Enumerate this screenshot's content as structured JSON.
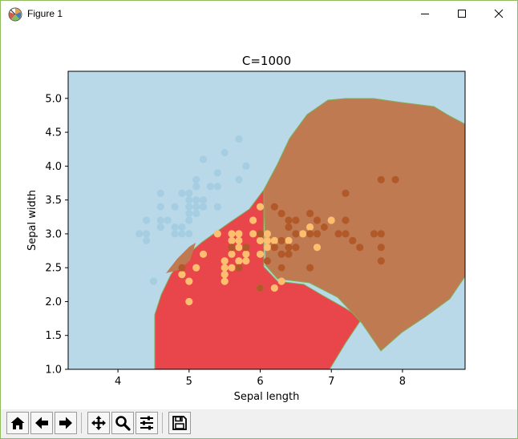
{
  "window": {
    "title": "Figure 1",
    "controls": [
      "minimize",
      "maximize",
      "close"
    ]
  },
  "chart_data": {
    "type": "scatter",
    "title": "C=1000",
    "xlabel": "Sepal length",
    "ylabel": "Sepal width",
    "xlim": [
      3.3,
      8.88
    ],
    "ylim": [
      1.0,
      5.4
    ],
    "xticks": [
      "4",
      "5",
      "6",
      "7",
      "8"
    ],
    "yticks": [
      "1.0",
      "1.5",
      "2.0",
      "2.5",
      "3.0",
      "3.5",
      "4.0",
      "4.5",
      "5.0"
    ],
    "grid": false,
    "legend": "none",
    "region_colors": {
      "background": "#b9d8e8",
      "red": "#e8464a",
      "brown": "#c07a52"
    },
    "series": [
      {
        "color": "#a6cee3",
        "points": [
          [
            4.3,
            3.0
          ],
          [
            4.4,
            2.9
          ],
          [
            4.4,
            3.0
          ],
          [
            4.4,
            3.2
          ],
          [
            4.5,
            2.3
          ],
          [
            4.6,
            3.1
          ],
          [
            4.6,
            3.2
          ],
          [
            4.6,
            3.4
          ],
          [
            4.6,
            3.6
          ],
          [
            4.7,
            3.2
          ],
          [
            4.8,
            3.0
          ],
          [
            4.8,
            3.1
          ],
          [
            4.8,
            3.4
          ],
          [
            4.9,
            3.0
          ],
          [
            4.9,
            3.1
          ],
          [
            4.9,
            3.6
          ],
          [
            5.0,
            3.0
          ],
          [
            5.0,
            3.2
          ],
          [
            5.0,
            3.3
          ],
          [
            5.0,
            3.4
          ],
          [
            5.0,
            3.5
          ],
          [
            5.0,
            3.6
          ],
          [
            5.1,
            3.3
          ],
          [
            5.1,
            3.4
          ],
          [
            5.1,
            3.5
          ],
          [
            5.1,
            3.7
          ],
          [
            5.1,
            3.8
          ],
          [
            5.2,
            3.4
          ],
          [
            5.2,
            3.5
          ],
          [
            5.2,
            4.1
          ],
          [
            5.3,
            3.7
          ],
          [
            5.4,
            3.4
          ],
          [
            5.4,
            3.7
          ],
          [
            5.4,
            3.9
          ],
          [
            5.5,
            4.2
          ],
          [
            5.7,
            3.8
          ],
          [
            5.7,
            4.4
          ],
          [
            5.8,
            4.0
          ]
        ]
      },
      {
        "color": "#fdbf6f",
        "points": [
          [
            4.9,
            2.4
          ],
          [
            5.0,
            2.0
          ],
          [
            5.0,
            2.3
          ],
          [
            5.1,
            2.5
          ],
          [
            5.2,
            2.7
          ],
          [
            5.4,
            3.0
          ],
          [
            5.5,
            2.3
          ],
          [
            5.5,
            2.4
          ],
          [
            5.5,
            2.5
          ],
          [
            5.5,
            2.6
          ],
          [
            5.6,
            2.5
          ],
          [
            5.6,
            2.7
          ],
          [
            5.6,
            2.9
          ],
          [
            5.6,
            3.0
          ],
          [
            5.7,
            2.6
          ],
          [
            5.7,
            2.8
          ],
          [
            5.7,
            2.9
          ],
          [
            5.7,
            3.0
          ],
          [
            5.8,
            2.6
          ],
          [
            5.8,
            2.7
          ],
          [
            5.9,
            3.0
          ],
          [
            5.9,
            3.2
          ],
          [
            6.0,
            2.2
          ],
          [
            6.0,
            2.7
          ],
          [
            6.0,
            2.9
          ],
          [
            6.0,
            3.4
          ],
          [
            6.1,
            2.8
          ],
          [
            6.1,
            2.9
          ],
          [
            6.1,
            3.0
          ],
          [
            6.2,
            2.2
          ],
          [
            6.2,
            2.9
          ],
          [
            6.3,
            2.3
          ],
          [
            6.3,
            2.5
          ],
          [
            6.4,
            2.9
          ],
          [
            6.6,
            3.0
          ],
          [
            6.7,
            3.1
          ],
          [
            6.8,
            2.8
          ],
          [
            6.9,
            3.1
          ],
          [
            7.0,
            3.2
          ]
        ]
      },
      {
        "color": "#b15928",
        "points": [
          [
            4.9,
            2.5
          ],
          [
            5.6,
            2.8
          ],
          [
            5.7,
            2.5
          ],
          [
            5.8,
            2.8
          ],
          [
            6.0,
            2.2
          ],
          [
            6.0,
            3.0
          ],
          [
            6.1,
            2.6
          ],
          [
            6.2,
            2.8
          ],
          [
            6.2,
            3.4
          ],
          [
            6.3,
            2.5
          ],
          [
            6.3,
            2.7
          ],
          [
            6.3,
            2.9
          ],
          [
            6.3,
            3.3
          ],
          [
            6.4,
            2.7
          ],
          [
            6.4,
            2.8
          ],
          [
            6.4,
            3.1
          ],
          [
            6.4,
            3.2
          ],
          [
            6.5,
            2.8
          ],
          [
            6.5,
            3.0
          ],
          [
            6.5,
            3.2
          ],
          [
            6.7,
            2.5
          ],
          [
            6.7,
            3.0
          ],
          [
            6.7,
            3.3
          ],
          [
            6.8,
            3.0
          ],
          [
            6.8,
            3.2
          ],
          [
            6.9,
            3.1
          ],
          [
            7.1,
            3.0
          ],
          [
            7.2,
            3.0
          ],
          [
            7.2,
            3.2
          ],
          [
            7.2,
            3.6
          ],
          [
            7.3,
            2.9
          ],
          [
            7.4,
            2.8
          ],
          [
            7.6,
            3.0
          ],
          [
            7.7,
            2.6
          ],
          [
            7.7,
            2.8
          ],
          [
            7.7,
            3.0
          ],
          [
            7.7,
            3.8
          ],
          [
            7.9,
            3.8
          ]
        ]
      }
    ]
  },
  "toolbar": {
    "buttons": [
      {
        "name": "home",
        "icon": "home-icon"
      },
      {
        "name": "back",
        "icon": "arrow-left-icon"
      },
      {
        "name": "forward",
        "icon": "arrow-right-icon"
      },
      {
        "name": "pan",
        "icon": "move-icon"
      },
      {
        "name": "zoom",
        "icon": "magnifier-icon"
      },
      {
        "name": "configure",
        "icon": "sliders-icon"
      },
      {
        "name": "save",
        "icon": "floppy-icon"
      }
    ]
  }
}
